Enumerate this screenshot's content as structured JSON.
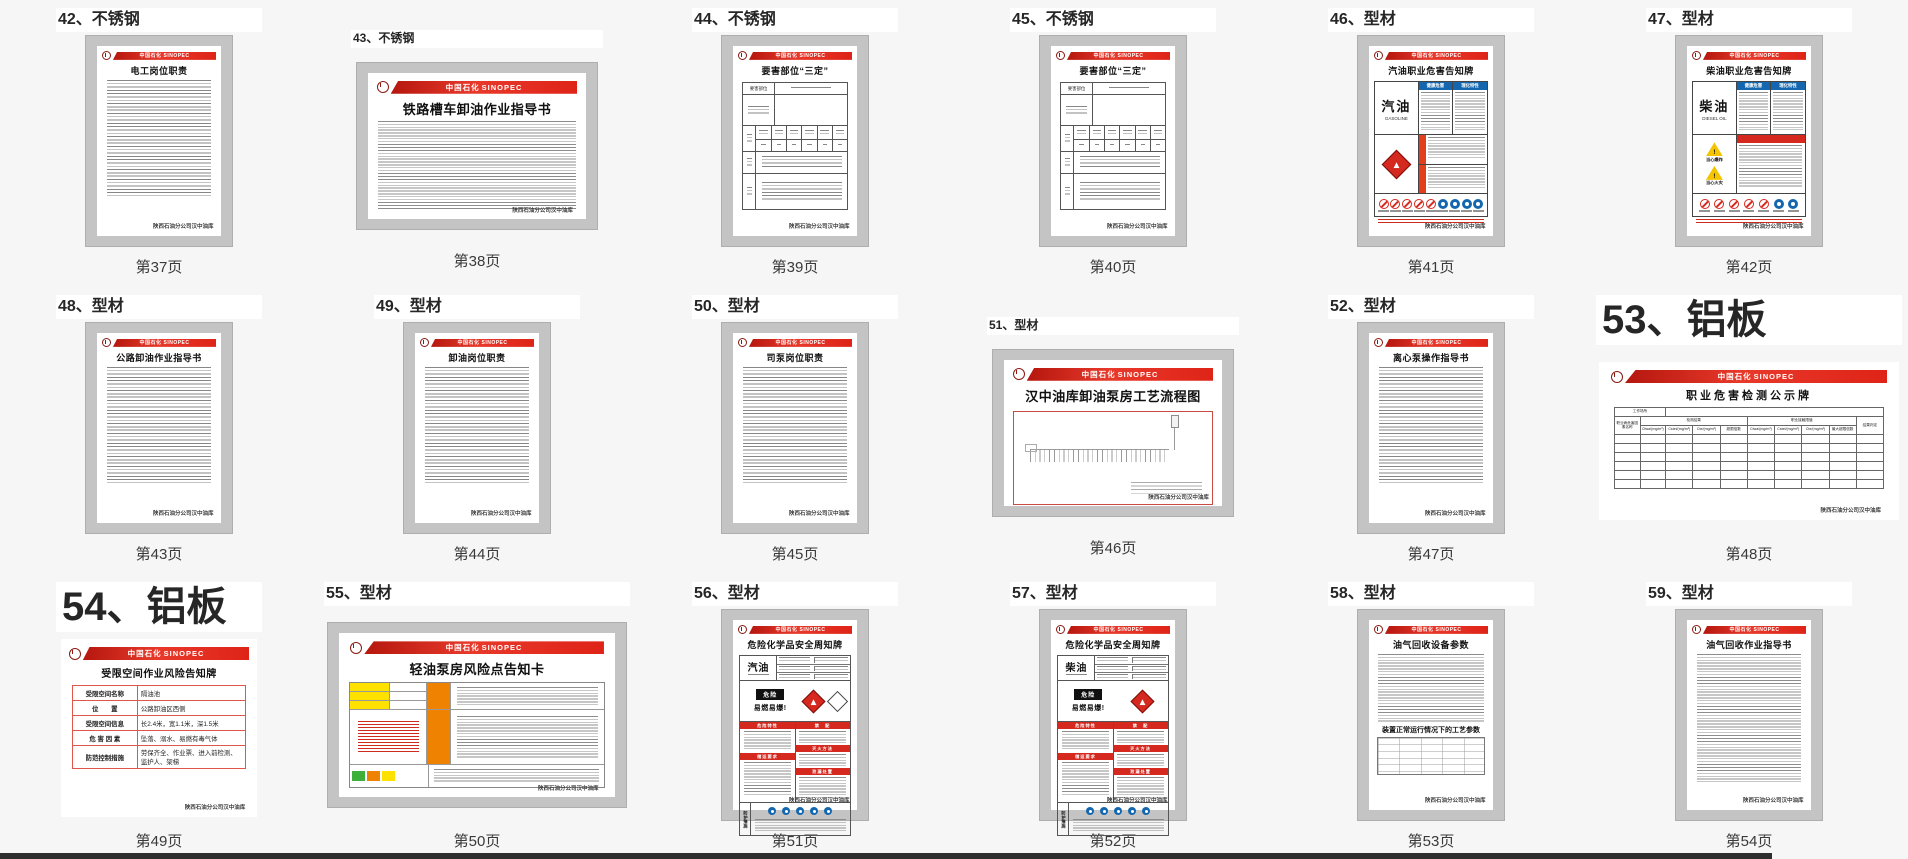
{
  "brand": {
    "cn": "中国石化",
    "en": "SINOPEC",
    "footer": "陕西石油分公司汉中油库",
    "bar_color": "#de2417",
    "blue": "#1467ae",
    "red": "#d5281e"
  },
  "hazard_headers": [
    "健康危害",
    "理化特性"
  ],
  "detect": {
    "corner": "工作场所",
    "factor": "职业病危害因素名称",
    "group1": "检测结果",
    "group2": "职业接触限值",
    "judge": "结果判定",
    "sub1": [
      "Ctwa/(mg/m³)",
      "Cstel/(mg/m³)",
      "Cte/(mg/m³)",
      "超限倍数"
    ],
    "sub2": [
      "Ctwa/(mg/m³)",
      "Cstel/(mg/m³)",
      "Cte/(mg/m³)",
      "最大超限倍数"
    ]
  },
  "weekly": {
    "danger": "危险",
    "danger_sub": "易燃易爆!",
    "sections_left": [
      "危险特性",
      "储运要求"
    ],
    "sections_right": [
      "禁　配",
      "灭火方法",
      "泄漏处置"
    ],
    "protect": "防护措施"
  },
  "sanding_corner": "要害部位",
  "cards": [
    {
      "label": "42、不锈钢",
      "caption": "第37页",
      "kind": "text",
      "orient": "portrait",
      "title": "电工岗位职责"
    },
    {
      "label": "43、不锈钢",
      "size": "sm",
      "shift": true,
      "caption": "第38页",
      "kind": "text",
      "orient": "landscape",
      "title": "铁路槽车卸油作业指导书"
    },
    {
      "label": "44、不锈钢",
      "caption": "第39页",
      "kind": "sanding",
      "title": "要害部位“三定”"
    },
    {
      "label": "45、不锈钢",
      "caption": "第40页",
      "kind": "sanding",
      "title": "要害部位“三定”"
    },
    {
      "label": "46、型材",
      "caption": "第41页",
      "kind": "hazard",
      "variant": "gasoline",
      "title": "汽油职业危害告知牌",
      "product": "汽油",
      "product_en": "GASOLINE"
    },
    {
      "label": "47、型材",
      "caption": "第42页",
      "kind": "hazard",
      "variant": "diesel",
      "title": "柴油职业危害告知牌",
      "product": "柴油",
      "product_en": "DIESEL OIL",
      "triangles": [
        "当心爆炸",
        "当心火灾"
      ]
    },
    {
      "label": "48、型材",
      "caption": "第43页",
      "kind": "text",
      "orient": "portrait",
      "title": "公路卸油作业指导书"
    },
    {
      "label": "49、型材",
      "caption": "第44页",
      "kind": "text",
      "orient": "portrait",
      "title": "卸油岗位职责"
    },
    {
      "label": "50、型材",
      "caption": "第45页",
      "kind": "text",
      "orient": "portrait",
      "title": "司泵岗位职责"
    },
    {
      "label": "51、型材",
      "size": "sm",
      "shift": true,
      "caption": "第46页",
      "kind": "flow",
      "title": "汉中油库卸油泵房工艺流程图"
    },
    {
      "label": "52、型材",
      "caption": "第47页",
      "kind": "text",
      "orient": "portrait",
      "title": "离心泵操作指导书"
    },
    {
      "label": "53、铝板",
      "size": "lg",
      "caption": "第48页",
      "kind": "detect",
      "title": "职业危害检测公示牌"
    },
    {
      "label": "54、铝板",
      "size": "lg",
      "caption": "第49页",
      "kind": "risk",
      "title": "受限空间作业风险告知牌",
      "rows": [
        [
          "受限空间名称",
          "隔油池"
        ],
        [
          "位　　置",
          "公路卸油区西侧"
        ],
        [
          "受限空间信息",
          "长2.4米，宽1.1米，深1.5米"
        ],
        [
          "危 害 因 素",
          "坠落、溺水、易燃有毒气体"
        ],
        [
          "防范控制措施",
          "劳保齐全、作业票、进入前检测、监护人、架梯"
        ]
      ]
    },
    {
      "label": "55、型材",
      "caption": "第50页",
      "kind": "riskcard",
      "title": "轻油泵房风险点告知卡"
    },
    {
      "label": "56、型材",
      "caption": "第51页",
      "kind": "weekly",
      "variant": "gasoline",
      "title": "危险化学品安全周知牌",
      "product": "汽油"
    },
    {
      "label": "57、型材",
      "caption": "第52页",
      "kind": "weekly",
      "variant": "diesel",
      "title": "危险化学品安全周知牌",
      "product": "柴油"
    },
    {
      "label": "58、型材",
      "caption": "第53页",
      "kind": "params",
      "title": "油气回收设备参数",
      "subtitle": "装置正常运行情况下的工艺参数"
    },
    {
      "label": "59、型材",
      "caption": "第54页",
      "kind": "text",
      "orient": "portrait",
      "dense": true,
      "title": "油气回收作业指导书"
    }
  ]
}
